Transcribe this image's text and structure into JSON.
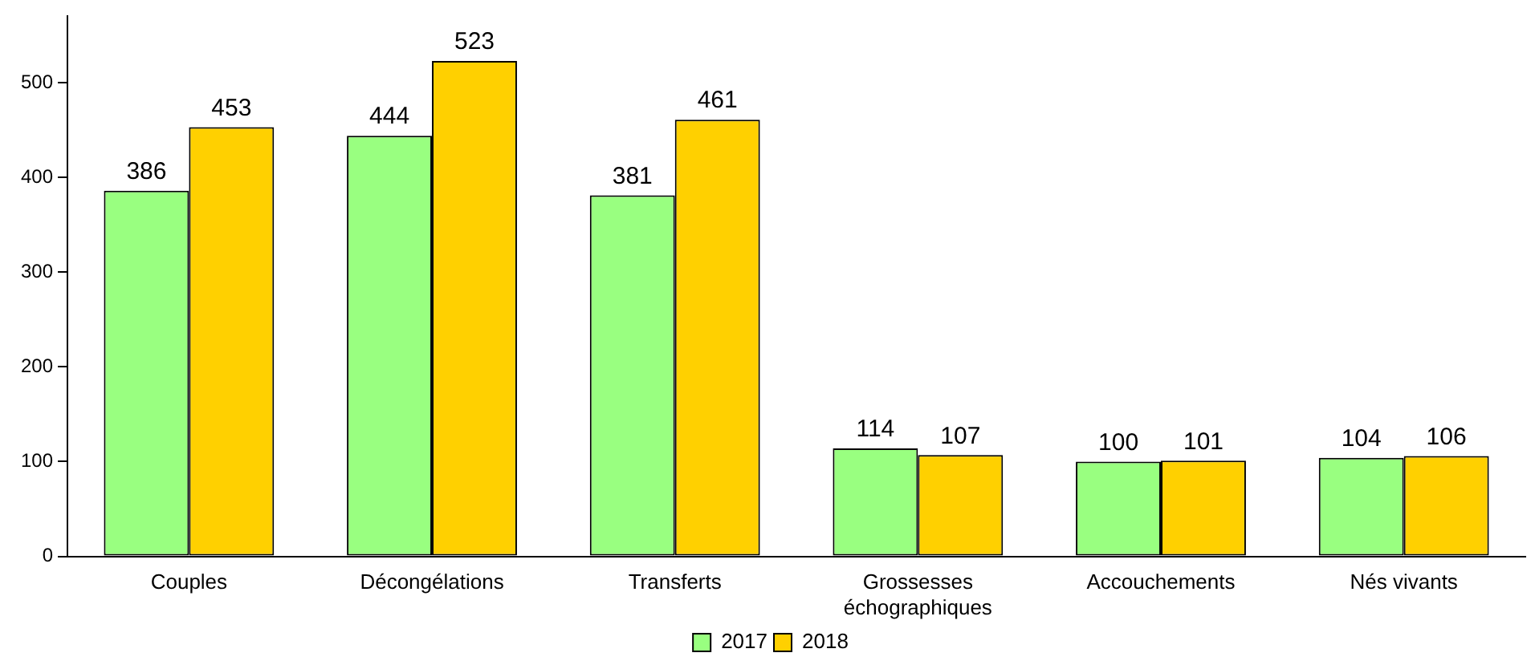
{
  "chart_data": {
    "type": "bar",
    "categories": [
      "Couples",
      "Décongélations",
      "Transferts",
      "Grossesses échographiques",
      "Accouchements",
      "Nés vivants"
    ],
    "series": [
      {
        "name": "2017",
        "color": "#99ff80",
        "values": [
          386,
          444,
          381,
          114,
          100,
          104
        ]
      },
      {
        "name": "2018",
        "color": "#ffd000",
        "values": [
          453,
          523,
          461,
          107,
          101,
          106
        ]
      }
    ],
    "ylim": [
      0,
      570
    ],
    "yticks": [
      0,
      100,
      200,
      300,
      400,
      500
    ],
    "grid": false,
    "legend": "bottom",
    "data_labels": true
  }
}
